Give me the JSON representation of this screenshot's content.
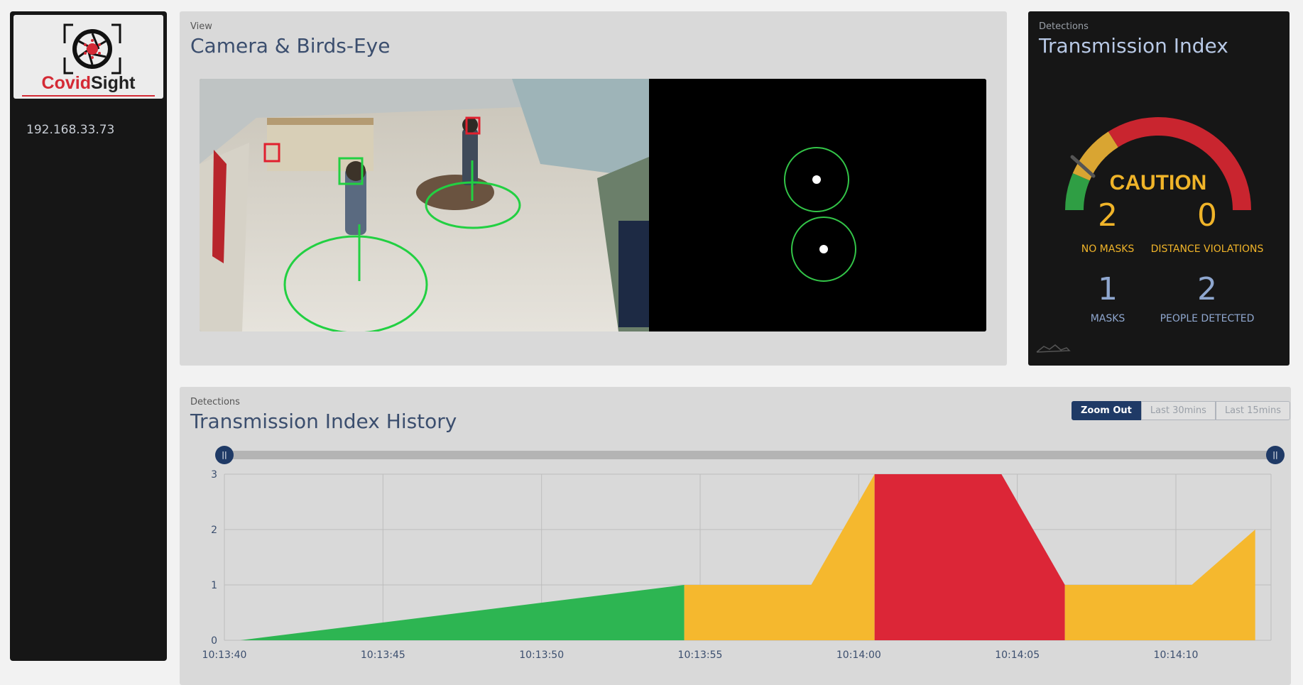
{
  "sidebar": {
    "logo": {
      "part1": "Covid",
      "part2": "Sight"
    },
    "ip_address": "192.168.33.73"
  },
  "view_panel": {
    "subtitle": "View",
    "title": "Camera & Birds-Eye"
  },
  "detections_panel": {
    "subtitle": "Detections",
    "title": "Transmission Index",
    "gauge_label": "CAUTION",
    "stats": [
      {
        "value": "2",
        "label": "NO MASKS",
        "color": "#f0b429"
      },
      {
        "value": "0",
        "label": "DISTANCE VIOLATIONS",
        "color": "#f0b429"
      },
      {
        "value": "1",
        "label": "MASKS",
        "color": "#8fa7cf"
      },
      {
        "value": "2",
        "label": "PEOPLE DETECTED",
        "color": "#8fa7cf"
      }
    ]
  },
  "history_panel": {
    "subtitle": "Detections",
    "title": "Transmission Index History",
    "buttons": [
      "Zoom Out",
      "Last 30mins",
      "Last 15mins"
    ]
  },
  "colors": {
    "green": "#2db552",
    "yellow": "#f5b82e",
    "red": "#dc2637",
    "gauge_green": "#2f9e44",
    "gauge_yellow": "#d9a532",
    "gauge_red": "#c9252f",
    "accent": "#1f3a66"
  },
  "chart_data": {
    "type": "area",
    "x": [
      "10:13:40",
      "10:13:55",
      "10:13:55",
      "10:13:59",
      "10:14:00",
      "10:14:04",
      "10:14:06",
      "10:14:10",
      "10:14:12"
    ],
    "xtick_labels": [
      "10:13:40",
      "10:13:45",
      "10:13:50",
      "10:13:55",
      "10:14:00",
      "10:14:05",
      "10:14:10"
    ],
    "ytick_labels": [
      "0",
      "1",
      "2",
      "3"
    ],
    "ylim": [
      0,
      3
    ],
    "segments": [
      {
        "level": "green",
        "points": [
          [
            "10:13:40.5",
            0
          ],
          [
            "10:13:54.5",
            1
          ]
        ]
      },
      {
        "level": "yellow",
        "points": [
          [
            "10:13:54.5",
            1
          ],
          [
            "10:13:58.5",
            1
          ],
          [
            "10:14:00.5",
            3
          ]
        ]
      },
      {
        "level": "red",
        "points": [
          [
            "10:14:00.5",
            3
          ],
          [
            "10:14:04.5",
            3
          ],
          [
            "10:14:06.5",
            1
          ]
        ]
      },
      {
        "level": "yellow",
        "points": [
          [
            "10:14:06.5",
            1
          ],
          [
            "10:14:10.5",
            1
          ],
          [
            "10:14:12.5",
            2
          ]
        ]
      }
    ],
    "grid": true
  }
}
